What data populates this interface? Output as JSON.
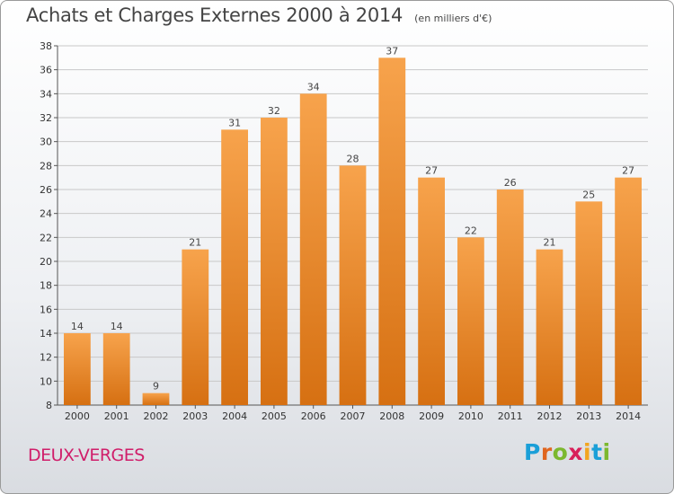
{
  "title": "Achats et Charges Externes 2000 à 2014",
  "unit_note": "(en milliers d'€)",
  "commune": "DEUX-VERGES",
  "logo": {
    "text": "Proxiti",
    "letter_colors": [
      "#1a9fd8",
      "#e0651f",
      "#7cb82f",
      "#d81f5a",
      "#f2a51f",
      "#1a9fd8",
      "#7cb82f"
    ]
  },
  "colors": {
    "bar_top": "#f7a34c",
    "bar_bottom": "#d67012",
    "grid": "#c8c8c8",
    "title": "#444444",
    "commune": "#d01e6a"
  },
  "chart_data": {
    "type": "bar",
    "categories": [
      "2000",
      "2001",
      "2002",
      "2003",
      "2004",
      "2005",
      "2006",
      "2007",
      "2008",
      "2009",
      "2010",
      "2011",
      "2012",
      "2013",
      "2014"
    ],
    "values": [
      14,
      14,
      9,
      21,
      31,
      32,
      34,
      28,
      37,
      27,
      22,
      26,
      21,
      25,
      27
    ],
    "ylim": [
      8,
      38
    ],
    "yticks": [
      8,
      10,
      12,
      14,
      16,
      18,
      20,
      22,
      24,
      26,
      28,
      30,
      32,
      34,
      36,
      38
    ],
    "grid": true,
    "xlabel": "",
    "ylabel": ""
  }
}
